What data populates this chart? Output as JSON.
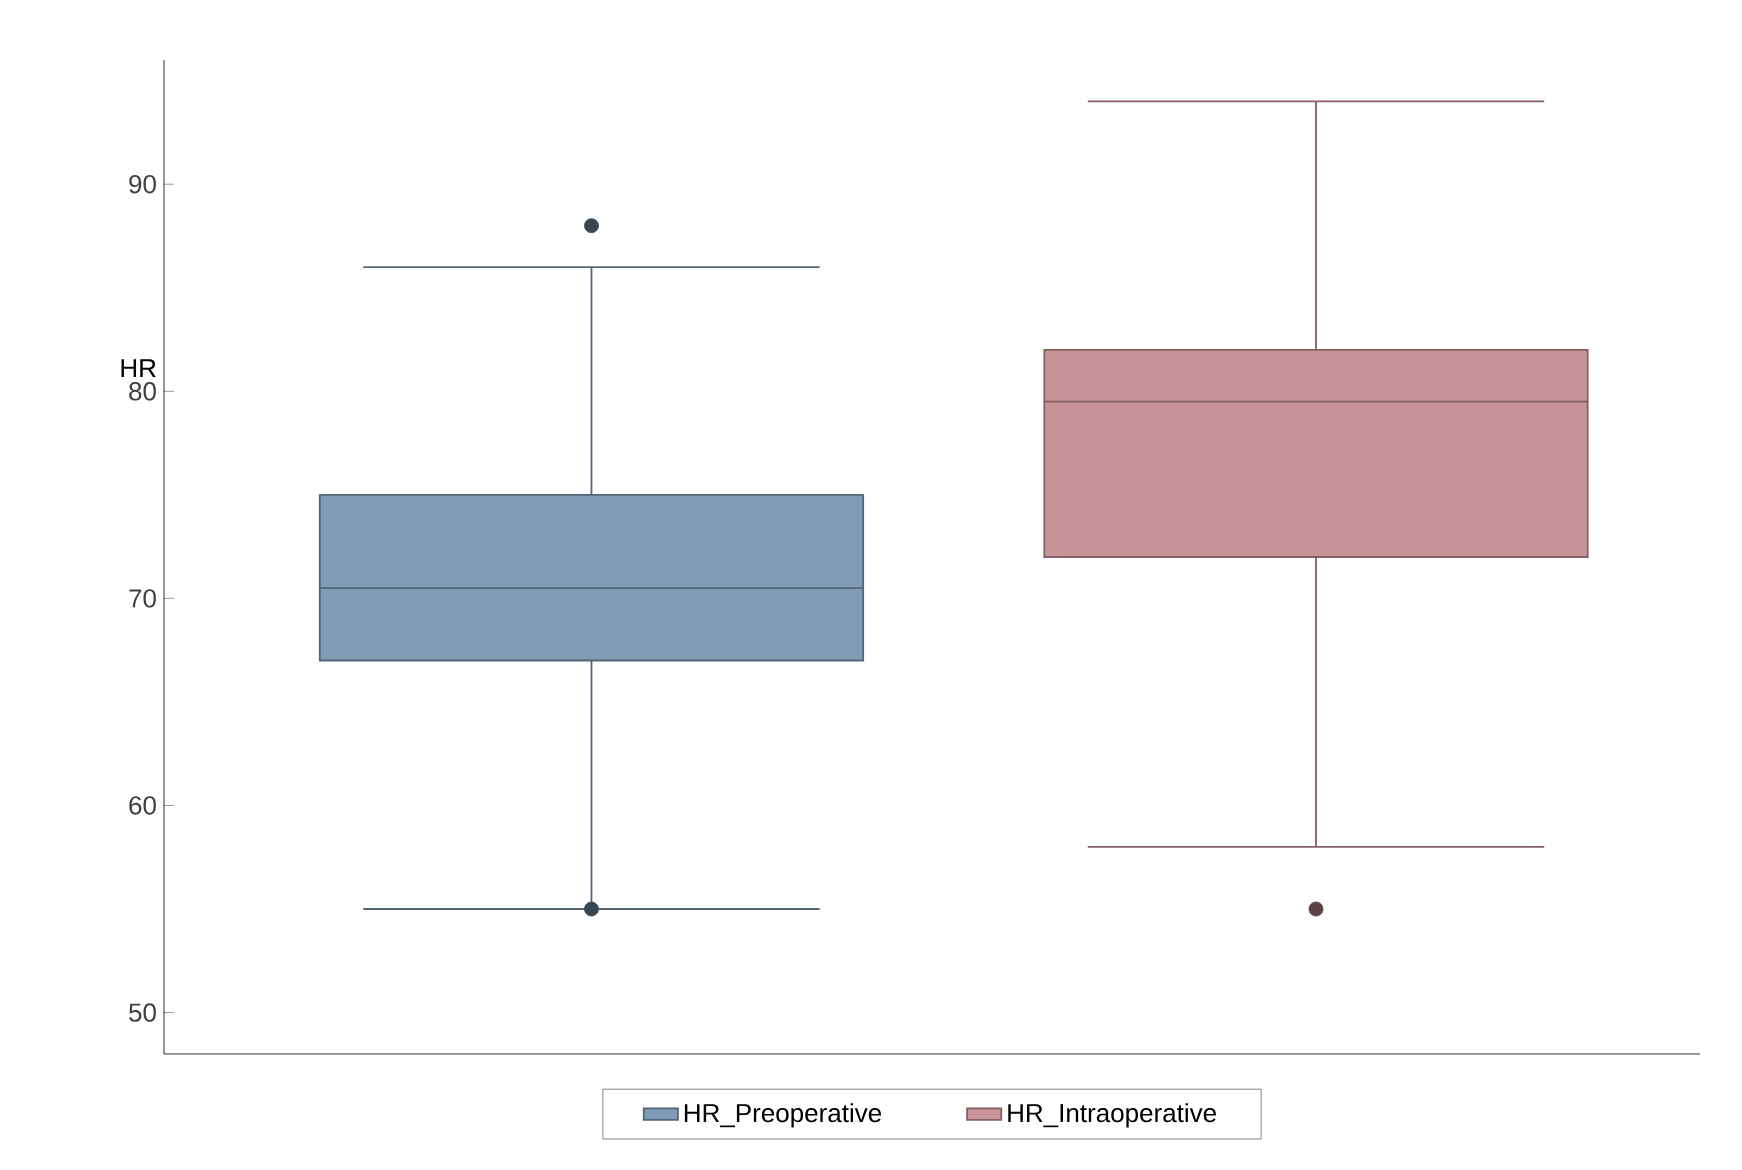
{
  "chart_data": {
    "type": "box",
    "ylabel": "HR",
    "categories": [
      null
    ],
    "series": [
      {
        "name": "HR_Preoperative",
        "color": "#7f9bb5",
        "boxes": [
          {
            "low": 55,
            "q1": 67,
            "median": 70.5,
            "q3": 75,
            "high": 86,
            "outliers": [
              88,
              55
            ]
          }
        ]
      },
      {
        "name": "HR_Intraoperative",
        "color": "#c9939a",
        "boxes": [
          {
            "low": 58,
            "q1": 72,
            "median": 79.5,
            "q3": 82,
            "high": 94,
            "outliers": [
              55
            ]
          }
        ]
      }
    ],
    "ylim": [
      48,
      96
    ],
    "yticks": [
      50,
      60,
      70,
      80,
      90
    ],
    "tick_labels": "y",
    "legend": "bottom",
    "marker": "circle"
  }
}
